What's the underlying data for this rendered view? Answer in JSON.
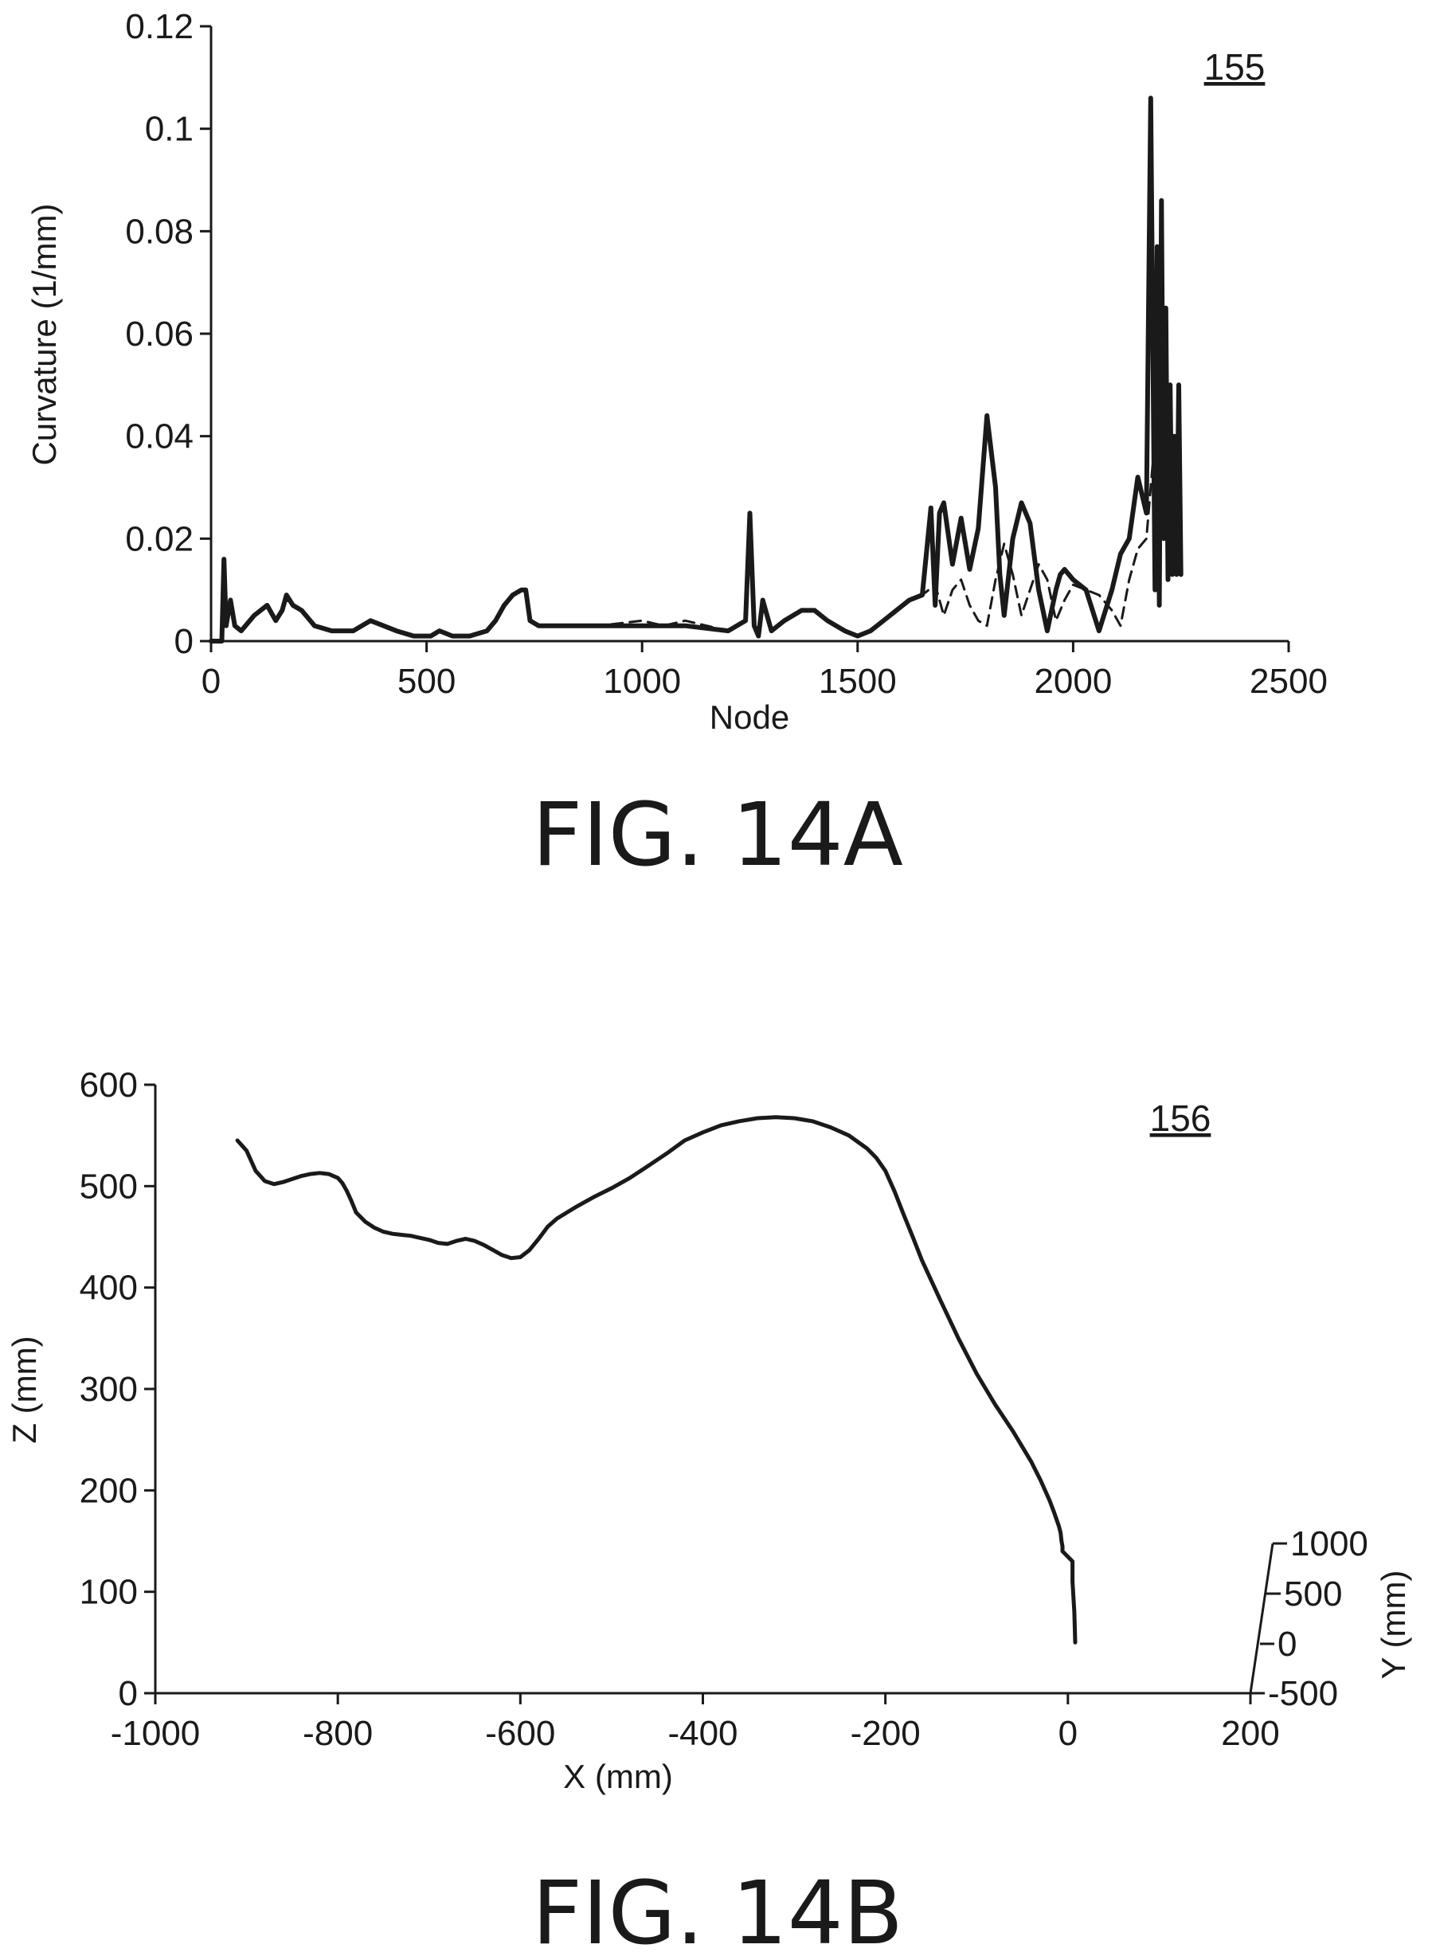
{
  "chart_data": [
    {
      "type": "line",
      "ref_label": "155",
      "caption": "FIG. 14A",
      "xlabel": "Node",
      "ylabel": "Curvature (1/mm)",
      "xlim": [
        0,
        2500
      ],
      "ylim": [
        0,
        0.12
      ],
      "xticks": [
        "0",
        "500",
        "1000",
        "1500",
        "2000",
        "2500"
      ],
      "yticks": [
        "0",
        "0.02",
        "0.04",
        "0.06",
        "0.08",
        "0.1",
        "0.12"
      ],
      "series": [
        {
          "style": "solid",
          "x": [
            0,
            25,
            30,
            35,
            45,
            55,
            70,
            100,
            130,
            150,
            165,
            175,
            190,
            210,
            240,
            280,
            330,
            370,
            400,
            430,
            470,
            510,
            530,
            560,
            600,
            640,
            660,
            680,
            700,
            720,
            730,
            740,
            760,
            800,
            900,
            1000,
            1100,
            1200,
            1240,
            1250,
            1260,
            1270,
            1280,
            1290,
            1300,
            1330,
            1370,
            1400,
            1430,
            1470,
            1500,
            1530,
            1560,
            1590,
            1620,
            1650,
            1670,
            1680,
            1690,
            1700,
            1720,
            1740,
            1760,
            1780,
            1800,
            1820,
            1830,
            1840,
            1860,
            1880,
            1900,
            1920,
            1940,
            1960,
            1970,
            1980,
            2000,
            2030,
            2060,
            2090,
            2110,
            2130,
            2150,
            2170,
            2180,
            2190,
            2195,
            2200,
            2205,
            2210,
            2215,
            2220,
            2225,
            2230,
            2235,
            2240,
            2245,
            2250
          ],
          "y": [
            0,
            0,
            0.016,
            0.003,
            0.008,
            0.003,
            0.002,
            0.005,
            0.007,
            0.004,
            0.006,
            0.009,
            0.007,
            0.006,
            0.003,
            0.002,
            0.002,
            0.004,
            0.003,
            0.002,
            0.001,
            0.001,
            0.002,
            0.001,
            0.001,
            0.002,
            0.004,
            0.007,
            0.009,
            0.01,
            0.01,
            0.004,
            0.003,
            0.003,
            0.003,
            0.003,
            0.003,
            0.002,
            0.004,
            0.025,
            0.003,
            0.001,
            0.008,
            0.005,
            0.002,
            0.004,
            0.006,
            0.006,
            0.004,
            0.002,
            0.001,
            0.002,
            0.004,
            0.006,
            0.008,
            0.009,
            0.026,
            0.007,
            0.025,
            0.027,
            0.015,
            0.024,
            0.014,
            0.022,
            0.044,
            0.03,
            0.013,
            0.005,
            0.02,
            0.027,
            0.023,
            0.01,
            0.002,
            0.01,
            0.013,
            0.014,
            0.012,
            0.01,
            0.002,
            0.01,
            0.017,
            0.02,
            0.032,
            0.025,
            0.106,
            0.01,
            0.077,
            0.007,
            0.086,
            0.02,
            0.065,
            0.012,
            0.05,
            0.013,
            0.04,
            0.013,
            0.05,
            0.013
          ]
        },
        {
          "style": "dashed",
          "x": [
            0,
            25,
            30,
            35,
            45,
            55,
            70,
            100,
            130,
            150,
            165,
            175,
            190,
            210,
            240,
            280,
            330,
            370,
            400,
            430,
            470,
            510,
            530,
            560,
            600,
            640,
            660,
            680,
            700,
            720,
            730,
            740,
            760,
            800,
            900,
            1000,
            1050,
            1100,
            1150,
            1200,
            1240,
            1250,
            1260,
            1270,
            1280,
            1290,
            1300,
            1330,
            1370,
            1400,
            1430,
            1470,
            1500,
            1530,
            1560,
            1590,
            1620,
            1650,
            1680,
            1700,
            1720,
            1740,
            1760,
            1780,
            1800,
            1820,
            1840,
            1860,
            1880,
            1900,
            1920,
            1940,
            1960,
            1980,
            2000,
            2030,
            2060,
            2090,
            2110,
            2130,
            2150,
            2170,
            2190,
            2200,
            2210,
            2220,
            2230,
            2240,
            2250
          ],
          "y": [
            0,
            0,
            0.014,
            0.003,
            0.007,
            0.003,
            0.002,
            0.005,
            0.007,
            0.004,
            0.006,
            0.008,
            0.007,
            0.006,
            0.003,
            0.002,
            0.002,
            0.004,
            0.003,
            0.002,
            0.001,
            0.001,
            0.002,
            0.001,
            0.001,
            0.002,
            0.004,
            0.007,
            0.009,
            0.01,
            0.01,
            0.004,
            0.003,
            0.003,
            0.003,
            0.004,
            0.003,
            0.004,
            0.003,
            0.002,
            0.004,
            0.018,
            0.003,
            0.001,
            0.007,
            0.005,
            0.002,
            0.004,
            0.006,
            0.006,
            0.004,
            0.002,
            0.001,
            0.002,
            0.004,
            0.006,
            0.008,
            0.009,
            0.011,
            0.005,
            0.01,
            0.012,
            0.007,
            0.004,
            0.003,
            0.012,
            0.019,
            0.013,
            0.005,
            0.01,
            0.015,
            0.012,
            0.004,
            0.008,
            0.011,
            0.01,
            0.009,
            0.006,
            0.003,
            0.012,
            0.018,
            0.02,
            0.04,
            0.05,
            0.06,
            0.045,
            0.04,
            0.035,
            0.03
          ]
        }
      ]
    },
    {
      "type": "line",
      "ref_label": "156",
      "caption": "FIG. 14B",
      "xlabel": "X (mm)",
      "ylabel": "Z (mm)",
      "y2label": "Y (mm)",
      "xlim": [
        -1000,
        200
      ],
      "ylim": [
        0,
        600
      ],
      "xticks": [
        "-1000",
        "-800",
        "-600",
        "-400",
        "-200",
        "0",
        "200"
      ],
      "yticks": [
        "0",
        "100",
        "200",
        "300",
        "400",
        "500",
        "600"
      ],
      "y2ticks": [
        "-500",
        "0",
        "500",
        "1000"
      ],
      "series": [
        {
          "style": "solid",
          "x": [
            -910,
            -905,
            -900,
            -895,
            -890,
            -885,
            -880,
            -870,
            -860,
            -850,
            -840,
            -830,
            -820,
            -810,
            -800,
            -795,
            -790,
            -785,
            -780,
            -770,
            -760,
            -750,
            -740,
            -730,
            -720,
            -710,
            -700,
            -690,
            -680,
            -670,
            -660,
            -650,
            -640,
            -630,
            -620,
            -610,
            -600,
            -590,
            -580,
            -570,
            -560,
            -540,
            -520,
            -500,
            -480,
            -460,
            -440,
            -420,
            -400,
            -380,
            -360,
            -340,
            -320,
            -300,
            -280,
            -260,
            -240,
            -220,
            -210,
            -200,
            -190,
            -180,
            -170,
            -160,
            -140,
            -120,
            -100,
            -80,
            -60,
            -40,
            -30,
            -20,
            -15,
            -10,
            -8,
            -7,
            -6,
            -6,
            5,
            5,
            7,
            8
          ],
          "y": [
            545,
            540,
            535,
            525,
            515,
            510,
            505,
            502,
            504,
            507,
            510,
            512,
            513,
            512,
            508,
            503,
            495,
            485,
            474,
            465,
            459,
            455,
            453,
            452,
            451,
            449,
            447,
            444,
            443,
            446,
            448,
            446,
            442,
            437,
            432,
            429,
            430,
            437,
            448,
            460,
            468,
            479,
            489,
            498,
            508,
            520,
            532,
            545,
            553,
            560,
            564,
            567,
            568,
            567,
            564,
            558,
            550,
            537,
            528,
            515,
            495,
            472,
            450,
            427,
            388,
            350,
            315,
            285,
            258,
            228,
            210,
            190,
            178,
            165,
            158,
            150,
            145,
            140,
            130,
            110,
            80,
            50
          ]
        }
      ]
    }
  ]
}
